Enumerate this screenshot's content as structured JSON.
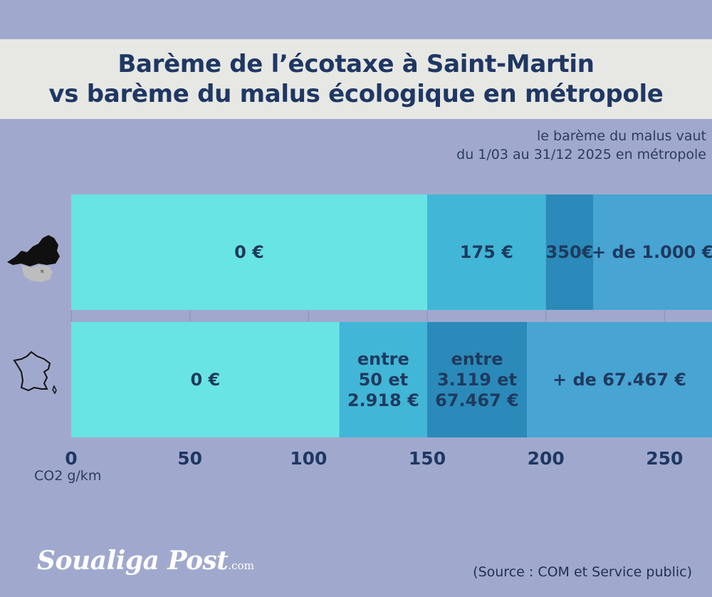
{
  "title": {
    "line1": "Barème de l’écotaxe à Saint-Martin",
    "line2": "vs barème du malus écologique en métropole"
  },
  "note": {
    "line1": "le barème du malus vaut",
    "line2": "du 1/03 au 31/12 2025 en métropole"
  },
  "source": "(Source : COM et Service public)",
  "logo": {
    "name": "Soualiga Post",
    "suffix": ".com"
  },
  "icons": {
    "row1": "saint-martin-map-icon",
    "row2": "france-map-icon"
  },
  "colors": {
    "tier1": "#68e4e5",
    "tier2": "#42b6d6",
    "tier3": "#2b8ab9",
    "tier4": "#48a4d3",
    "label": "#1f3a5e",
    "axis": "#1f3763"
  },
  "chart_data": {
    "type": "bar",
    "orientation": "horizontal-stacked-ranges",
    "xlabel": "CO2 g/km",
    "xlim": [
      0,
      270
    ],
    "xticks": [
      0,
      50,
      100,
      150,
      200,
      250
    ],
    "rows": [
      {
        "icon": "saint-martin-map-icon",
        "segments": [
          {
            "from": 0,
            "to": 150,
            "label": [
              "0 €"
            ],
            "color": "#68e4e5"
          },
          {
            "from": 150,
            "to": 200,
            "label": [
              "175 €"
            ],
            "color": "#42b6d6"
          },
          {
            "from": 200,
            "to": 220,
            "label": [
              "350€"
            ],
            "color": "#2b8ab9"
          },
          {
            "from": 220,
            "to": 270,
            "label": [
              "+ de 1.000 €"
            ],
            "color": "#48a4d3"
          }
        ]
      },
      {
        "icon": "france-map-icon",
        "segments": [
          {
            "from": 0,
            "to": 113,
            "label": [
              "0 €"
            ],
            "color": "#68e4e5"
          },
          {
            "from": 113,
            "to": 150,
            "label": [
              "entre",
              "50 et",
              "2.918 €"
            ],
            "color": "#42b6d6"
          },
          {
            "from": 150,
            "to": 192,
            "label": [
              "entre",
              "3.119 et",
              "67.467 €"
            ],
            "color": "#2b8ab9"
          },
          {
            "from": 192,
            "to": 270,
            "label": [
              "+ de  67.467 €"
            ],
            "color": "#48a4d3"
          }
        ]
      }
    ]
  }
}
